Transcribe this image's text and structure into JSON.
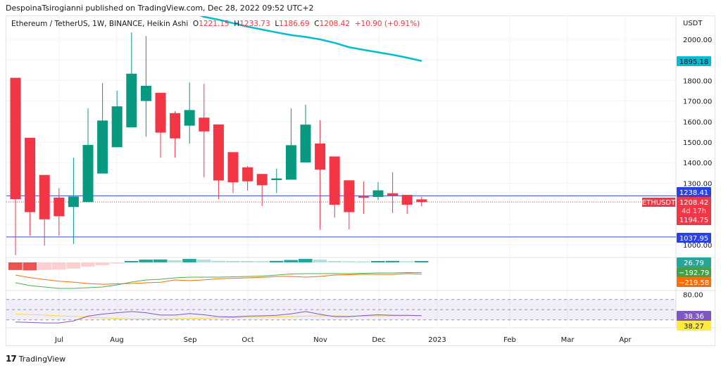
{
  "header": {
    "published": "DespoinaTsirogianni published on TradingView.com, Dec 28, 2022 09:52 UTC+2"
  },
  "legend": {
    "symbol": "Ethereum / TetherUS, 1W, BINANCE, Heikin Ashi",
    "o_label": "O",
    "o": "1221.15",
    "h_label": "H",
    "h": "1233.73",
    "l_label": "L",
    "l": "1186.69",
    "c_label": "C",
    "c": "1208.42",
    "change": "+10.90 (+0.91%)"
  },
  "currency": "USDT",
  "footer": {
    "brand": "TradingView",
    "logo_glyph": "17"
  },
  "colors": {
    "up": "#089981",
    "down": "#f23645",
    "ma": "#00bcd4",
    "hline": "#3448d8",
    "macd": "#4caf50",
    "signal": "#ff6d00",
    "rsi": "#7e57c2",
    "rsi_ma": "#fdd835"
  },
  "chart_data": [
    {
      "type": "candlestick",
      "style": "Heikin Ashi",
      "ylim": [
        950,
        2140
      ],
      "y_ticks": [
        "2000.00",
        "1800.00",
        "1700.00",
        "1600.00",
        "1500.00",
        "1400.00",
        "1300.00",
        "1000.00"
      ],
      "x_ticks": [
        "Jul",
        "Aug",
        "Sep",
        "Oct",
        "Nov",
        "Dec",
        "2023",
        "Feb",
        "Mar",
        "Apr"
      ],
      "grid": true,
      "candles": [
        [
          1813,
          1813,
          949,
          1222
        ],
        [
          1521,
          1521,
          1045,
          1159
        ],
        [
          1340,
          1340,
          996,
          1124
        ],
        [
          1230,
          1276,
          1045,
          1139
        ],
        [
          1184,
          1424,
          1004,
          1235
        ],
        [
          1208,
          1664,
          1208,
          1486
        ],
        [
          1347,
          1787,
          1347,
          1605
        ],
        [
          1475,
          1750,
          1475,
          1674
        ],
        [
          1572,
          2034,
          1572,
          1833
        ],
        [
          1700,
          2016,
          1526,
          1774
        ],
        [
          1740,
          1740,
          1424,
          1546
        ],
        [
          1641,
          1651,
          1424,
          1518
        ],
        [
          1580,
          1790,
          1492,
          1656
        ],
        [
          1619,
          1784,
          1328,
          1552
        ],
        [
          1586,
          1586,
          1222,
          1313
        ],
        [
          1451,
          1451,
          1252,
          1304
        ],
        [
          1377,
          1384,
          1264,
          1309
        ],
        [
          1345,
          1345,
          1189,
          1290
        ],
        [
          1315,
          1371,
          1252,
          1323
        ],
        [
          1317,
          1664,
          1317,
          1485
        ],
        [
          1401,
          1682,
          1401,
          1585
        ],
        [
          1493,
          1607,
          1073,
          1366
        ],
        [
          1430,
          1430,
          1132,
          1195
        ],
        [
          1314,
          1314,
          1075,
          1159
        ],
        [
          1236,
          1308,
          1150,
          1229
        ],
        [
          1233,
          1305,
          1218,
          1265
        ],
        [
          1251,
          1353,
          1155,
          1239
        ],
        [
          1243,
          1243,
          1150,
          1195
        ],
        [
          1221.15,
          1233.73,
          1186.69,
          1208.42
        ]
      ],
      "moving_average": [
        null,
        null,
        null,
        null,
        null,
        null,
        null,
        null,
        null,
        null,
        null,
        null,
        2134,
        2110,
        2096,
        2079,
        2062,
        2048,
        2034,
        2021,
        2012,
        2000,
        1983,
        1962,
        1949,
        1937,
        1925,
        1911,
        1895.18
      ],
      "horizontal_lines": [
        1238.41,
        1037.95
      ],
      "price_tags": {
        "ma": "1895.18",
        "hline1": "1238.41",
        "last": "1208.42",
        "countdown": "4d 17h",
        "low_tag": "1194.75",
        "hline2": "1037.95",
        "symbol": "ETHUSDT"
      }
    },
    {
      "type": "macd",
      "histogram": [
        -143,
        -150,
        -140,
        -135,
        -117,
        -78,
        -52,
        -20,
        26,
        52,
        55,
        39,
        65,
        52,
        30,
        28,
        26,
        22,
        28,
        45,
        65,
        52,
        26,
        20,
        18,
        26,
        28,
        20,
        26.79
      ],
      "macd": [
        -382,
        -434,
        -461,
        -487,
        -487,
        -474,
        -461,
        -421,
        -368,
        -329,
        -316,
        -290,
        -276,
        -276,
        -276,
        -270,
        -263,
        -257,
        -237,
        -217,
        -211,
        -211,
        -211,
        -211,
        -204,
        -197,
        -197,
        -191,
        -192.79
      ],
      "signal": [
        -239,
        -284,
        -321,
        -352,
        -370,
        -396,
        -409,
        -401,
        -394,
        -381,
        -371,
        -329,
        -341,
        -328,
        -306,
        -298,
        -289,
        -279,
        -265,
        -262,
        -276,
        -263,
        -237,
        -231,
        -222,
        -223,
        -225,
        -211,
        -219.58
      ],
      "tags": {
        "histogram": "26.79",
        "macd": "−192.79",
        "signal": "−219.58"
      }
    },
    {
      "type": "rsi",
      "bands": [
        70,
        50,
        30
      ],
      "y_tick": "80.00",
      "rsi": [
        26,
        25,
        24,
        24,
        28,
        37.5,
        41.5,
        44,
        46.5,
        44,
        39.5,
        39.5,
        42.5,
        40,
        36.5,
        36,
        37.5,
        38,
        39,
        42,
        46.5,
        41,
        36.5,
        36.5,
        38.5,
        40,
        39,
        39,
        38.36
      ],
      "rsi_ma": [
        41.5,
        40.5,
        39.5,
        38,
        37,
        35.5,
        34,
        33,
        32,
        32,
        32,
        32.5,
        33,
        33.5,
        34,
        34.5,
        35,
        35.5,
        36,
        36.5,
        37.5,
        38,
        38,
        37.5,
        37.5,
        38,
        38,
        38.2,
        38.27
      ],
      "tags": {
        "rsi": "38.36",
        "rsi_ma": "38.27"
      }
    }
  ]
}
